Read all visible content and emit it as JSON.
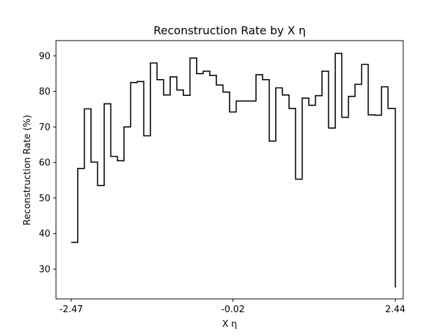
{
  "chart_data": {
    "type": "line",
    "step": "post",
    "title": "Reconstruction Rate by X η",
    "xlabel": "X η",
    "ylabel": "Reconstruction Rate (%)",
    "x_ticks": [
      -2.47,
      -0.02,
      2.44
    ],
    "x_tick_labels": [
      "-2.47",
      "-0.02",
      "2.44"
    ],
    "y_ticks": [
      30,
      40,
      50,
      60,
      70,
      80,
      90
    ],
    "y_tick_labels": [
      "30",
      "40",
      "50",
      "60",
      "70",
      "80",
      "90"
    ],
    "xlim": [
      -2.7,
      2.56
    ],
    "ylim": [
      21.6,
      94.3
    ],
    "grid": false,
    "series": [
      {
        "color": "#000000",
        "x": [
          -2.47,
          -2.37,
          -2.27,
          -2.17,
          -2.07,
          -1.97,
          -1.87,
          -1.77,
          -1.67,
          -1.57,
          -1.47,
          -1.37,
          -1.27,
          -1.17,
          -1.07,
          -0.97,
          -0.87,
          -0.77,
          -0.67,
          -0.57,
          -0.47,
          -0.37,
          -0.27,
          -0.17,
          -0.07,
          0.03,
          0.13,
          0.23,
          0.33,
          0.43,
          0.53,
          0.63,
          0.73,
          0.83,
          0.93,
          1.03,
          1.13,
          1.23,
          1.33,
          1.43,
          1.53,
          1.63,
          1.73,
          1.83,
          1.93,
          2.03,
          2.13,
          2.23,
          2.33,
          2.44
        ],
        "y": [
          37.5,
          58.3,
          75.1,
          60.1,
          53.5,
          76.5,
          61.7,
          60.5,
          70.0,
          82.5,
          82.8,
          67.5,
          88.0,
          83.3,
          79.0,
          84.1,
          80.4,
          78.9,
          89.4,
          85.0,
          85.7,
          84.5,
          81.8,
          79.8,
          74.2,
          77.3,
          77.3,
          77.3,
          84.7,
          83.3,
          66.0,
          81.0,
          79.0,
          75.2,
          55.3,
          78.1,
          76.1,
          78.8,
          85.7,
          69.7,
          90.7,
          72.7,
          78.6,
          82.0,
          87.6,
          73.4,
          73.3,
          81.3,
          75.2,
          25.0
        ]
      }
    ]
  }
}
